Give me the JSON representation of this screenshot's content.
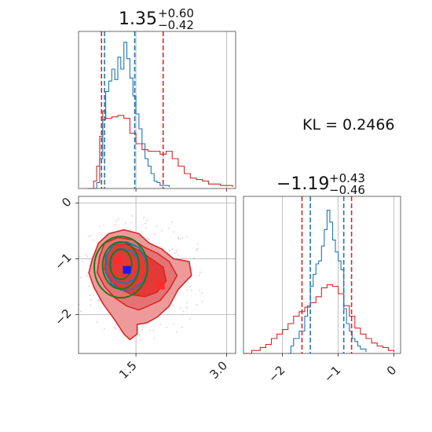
{
  "chart_data": {
    "type": "corner",
    "colors": {
      "red": "#d62728",
      "blue": "#1f77b4",
      "green": "#1a7a1a",
      "grid": "#b0b0b0"
    },
    "kl_label": "KL = 0.2466",
    "param1": {
      "title_main": "1.35",
      "title_plus": "+0.60",
      "title_minus": "−0.42",
      "xlim": [
        0.55,
        3.15
      ],
      "ticks": [
        1.5,
        3.0
      ],
      "tick_labels": [
        "1.5",
        "3.0"
      ],
      "red_quantiles": [
        0.93,
        1.95
      ],
      "blue_quantiles": [
        0.98,
        1.48
      ]
    },
    "param2": {
      "title_main": "−1.19",
      "title_plus": "+0.43",
      "title_minus": "−0.46",
      "xlim": [
        -2.7,
        0.12
      ],
      "ylim": [
        -2.7,
        0.12
      ],
      "ticks": [
        -2,
        -1,
        0
      ],
      "tick_labels": [
        "−2",
        "−1",
        "0"
      ],
      "red_quantiles": [
        -1.65,
        -0.76
      ],
      "blue_quantiles": [
        -1.5,
        -0.9
      ]
    },
    "markers": {
      "blue": {
        "x": 1.35,
        "y": -1.2
      },
      "red": [
        {
          "x": 1.2,
          "y": -1.03
        },
        {
          "x": 1.91,
          "y": -1.48
        }
      ]
    },
    "hist1_red": [
      [
        0.7,
        0.0
      ],
      [
        0.8,
        0.05
      ],
      [
        0.85,
        0.15
      ],
      [
        0.9,
        0.35
      ],
      [
        0.95,
        0.52
      ],
      [
        1.0,
        0.47
      ],
      [
        1.1,
        0.48
      ],
      [
        1.2,
        0.49
      ],
      [
        1.3,
        0.47
      ],
      [
        1.4,
        0.37
      ],
      [
        1.5,
        0.3
      ],
      [
        1.6,
        0.26
      ],
      [
        1.7,
        0.25
      ],
      [
        1.8,
        0.25
      ],
      [
        1.9,
        0.23
      ],
      [
        2.0,
        0.25
      ],
      [
        2.1,
        0.2
      ],
      [
        2.2,
        0.15
      ],
      [
        2.3,
        0.1
      ],
      [
        2.4,
        0.07
      ],
      [
        2.5,
        0.06
      ],
      [
        2.6,
        0.05
      ],
      [
        2.7,
        0.03
      ],
      [
        2.9,
        0.02
      ],
      [
        3.1,
        0.01
      ]
    ],
    "hist1_blue": [
      [
        0.8,
        0.0
      ],
      [
        0.85,
        0.04
      ],
      [
        0.9,
        0.2
      ],
      [
        0.95,
        0.46
      ],
      [
        1.0,
        0.65
      ],
      [
        1.05,
        0.72
      ],
      [
        1.1,
        0.8
      ],
      [
        1.15,
        0.73
      ],
      [
        1.2,
        0.88
      ],
      [
        1.25,
        0.8
      ],
      [
        1.3,
        0.98
      ],
      [
        1.35,
        0.87
      ],
      [
        1.4,
        0.74
      ],
      [
        1.45,
        0.62
      ],
      [
        1.5,
        0.5
      ],
      [
        1.55,
        0.4
      ],
      [
        1.6,
        0.3
      ],
      [
        1.65,
        0.2
      ],
      [
        1.7,
        0.15
      ],
      [
        1.75,
        0.1
      ],
      [
        1.8,
        0.05
      ],
      [
        1.85,
        0.04
      ],
      [
        1.9,
        0.02
      ],
      [
        2.0,
        0.02
      ],
      [
        2.05,
        0.01
      ]
    ],
    "hist2_red": [
      [
        -2.7,
        0.0
      ],
      [
        -2.55,
        0.02
      ],
      [
        -2.4,
        0.04
      ],
      [
        -2.3,
        0.06
      ],
      [
        -2.2,
        0.1
      ],
      [
        -2.1,
        0.13
      ],
      [
        -2.0,
        0.16
      ],
      [
        -1.9,
        0.2
      ],
      [
        -1.8,
        0.25
      ],
      [
        -1.7,
        0.28
      ],
      [
        -1.6,
        0.31
      ],
      [
        -1.5,
        0.34
      ],
      [
        -1.4,
        0.38
      ],
      [
        -1.3,
        0.44
      ],
      [
        -1.2,
        0.46
      ],
      [
        -1.1,
        0.45
      ],
      [
        -1.0,
        0.4
      ],
      [
        -0.9,
        0.32
      ],
      [
        -0.8,
        0.25
      ],
      [
        -0.7,
        0.17
      ],
      [
        -0.6,
        0.13
      ],
      [
        -0.5,
        0.1
      ],
      [
        -0.4,
        0.07
      ],
      [
        -0.3,
        0.05
      ],
      [
        -0.2,
        0.04
      ],
      [
        -0.1,
        0.02
      ],
      [
        0.0,
        0.01
      ]
    ],
    "hist2_blue": [
      [
        -1.9,
        0.0
      ],
      [
        -1.85,
        0.05
      ],
      [
        -1.8,
        0.1
      ],
      [
        -1.7,
        0.15
      ],
      [
        -1.6,
        0.25
      ],
      [
        -1.55,
        0.32
      ],
      [
        -1.5,
        0.45
      ],
      [
        -1.45,
        0.53
      ],
      [
        -1.4,
        0.6
      ],
      [
        -1.35,
        0.62
      ],
      [
        -1.3,
        0.72
      ],
      [
        -1.25,
        0.83
      ],
      [
        -1.2,
        0.96
      ],
      [
        -1.15,
        0.88
      ],
      [
        -1.1,
        0.76
      ],
      [
        -1.05,
        0.68
      ],
      [
        -1.0,
        0.62
      ],
      [
        -0.95,
        0.56
      ],
      [
        -0.9,
        0.3
      ],
      [
        -0.85,
        0.2
      ],
      [
        -0.8,
        0.15
      ],
      [
        -0.75,
        0.1
      ],
      [
        -0.7,
        0.08
      ],
      [
        -0.65,
        0.05
      ],
      [
        -0.6,
        0.03
      ],
      [
        -0.5,
        0.01
      ]
    ],
    "red_contours": [
      [
        [
          0.78,
          -1.0
        ],
        [
          0.88,
          -0.72
        ],
        [
          1.05,
          -0.55
        ],
        [
          1.3,
          -0.48
        ],
        [
          1.55,
          -0.55
        ],
        [
          1.72,
          -0.72
        ],
        [
          1.92,
          -0.82
        ],
        [
          2.12,
          -1.0
        ],
        [
          2.38,
          -1.05
        ],
        [
          2.42,
          -1.3
        ],
        [
          2.2,
          -1.55
        ],
        [
          2.05,
          -1.85
        ],
        [
          1.85,
          -2.05
        ],
        [
          1.68,
          -2.15
        ],
        [
          1.52,
          -2.18
        ],
        [
          1.52,
          -2.35
        ],
        [
          1.4,
          -2.45
        ],
        [
          1.3,
          -2.35
        ],
        [
          1.15,
          -2.1
        ],
        [
          0.95,
          -1.8
        ],
        [
          0.8,
          -1.5
        ],
        [
          0.72,
          -1.25
        ]
      ],
      [
        [
          0.9,
          -0.95
        ],
        [
          0.98,
          -0.72
        ],
        [
          1.2,
          -0.62
        ],
        [
          1.45,
          -0.66
        ],
        [
          1.65,
          -0.8
        ],
        [
          1.85,
          -0.9
        ],
        [
          2.05,
          -1.05
        ],
        [
          2.18,
          -1.3
        ],
        [
          2.05,
          -1.55
        ],
        [
          1.9,
          -1.75
        ],
        [
          1.7,
          -1.85
        ],
        [
          1.55,
          -1.92
        ],
        [
          1.35,
          -1.85
        ],
        [
          1.15,
          -1.7
        ],
        [
          0.98,
          -1.5
        ],
        [
          0.86,
          -1.25
        ]
      ],
      [
        [
          1.0,
          -0.95
        ],
        [
          1.12,
          -0.75
        ],
        [
          1.35,
          -0.74
        ],
        [
          1.55,
          -0.85
        ],
        [
          1.75,
          -1.0
        ],
        [
          1.95,
          -1.15
        ],
        [
          2.0,
          -1.4
        ],
        [
          1.85,
          -1.6
        ],
        [
          1.65,
          -1.68
        ],
        [
          1.45,
          -1.65
        ],
        [
          1.25,
          -1.55
        ],
        [
          1.08,
          -1.38
        ],
        [
          0.98,
          -1.18
        ]
      ]
    ],
    "blue_contours": [
      [
        [
          1.02,
          -0.92
        ],
        [
          1.15,
          -0.72
        ],
        [
          1.35,
          -0.7
        ],
        [
          1.55,
          -0.8
        ],
        [
          1.65,
          -0.98
        ],
        [
          1.7,
          -1.2
        ],
        [
          1.62,
          -1.42
        ],
        [
          1.45,
          -1.55
        ],
        [
          1.25,
          -1.56
        ],
        [
          1.1,
          -1.45
        ],
        [
          1.0,
          -1.25
        ]
      ],
      [
        [
          1.1,
          -0.95
        ],
        [
          1.22,
          -0.82
        ],
        [
          1.4,
          -0.84
        ],
        [
          1.52,
          -0.97
        ],
        [
          1.55,
          -1.18
        ],
        [
          1.48,
          -1.37
        ],
        [
          1.32,
          -1.45
        ],
        [
          1.17,
          -1.4
        ],
        [
          1.08,
          -1.22
        ]
      ]
    ],
    "green_ellipses": [
      {
        "cx": 1.25,
        "cy": -1.15,
        "rx": 0.44,
        "ry": 0.55
      },
      {
        "cx": 1.25,
        "cy": -1.12,
        "rx": 0.3,
        "ry": 0.42
      },
      {
        "cx": 1.25,
        "cy": -1.1,
        "rx": 0.18,
        "ry": 0.27
      }
    ]
  }
}
